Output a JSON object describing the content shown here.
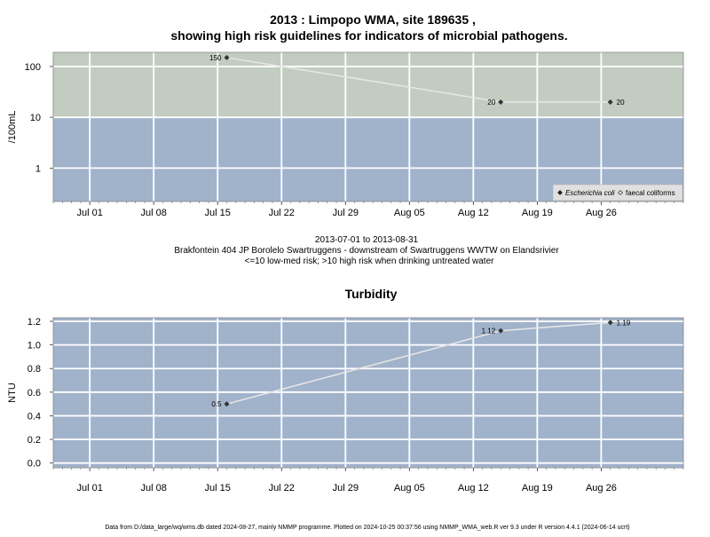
{
  "header": {
    "title_line1": "2013 : Limpopo WMA, site 189635 ,",
    "title_line2": "showing high risk guidelines for indicators of microbial pathogens."
  },
  "caption": {
    "date_range": "2013-07-01 to 2013-08-31",
    "site_description": "Brakfontein 404 JP Borolelo Swartruggens - downstream of Swartruggens WWTW on Elandsrivier",
    "risk_note": "<=10 low-med risk; >10 high risk when drinking untreated water"
  },
  "footer": {
    "text": "Data from D:/data_large/wq/wms.db dated 2024-08-27, mainly NMMP programme. Plotted on 2024-10-25 00:37:56 using NMMP_WMA_web.R ver 9.3 under R version 4.4.1 (2024-06-14 ucrt)"
  },
  "colors": {
    "high_risk_band": "#c2ccc0",
    "low_risk_band": "#a1b2cb",
    "line": "#e6e6e6",
    "grid": "#ffffff",
    "point": "#333333"
  },
  "chart_data": [
    {
      "type": "line",
      "title": "",
      "ylabel": "/100mL",
      "xlabel": "",
      "y_scale": "log",
      "xlim": [
        "2013-06-27",
        "2013-09-04"
      ],
      "ylim": [
        0.22,
        190
      ],
      "y_ticks": [
        1,
        10,
        100
      ],
      "y_tick_labels": [
        "1",
        "10",
        "100"
      ],
      "x_ticks": [
        "2013-07-01",
        "2013-07-08",
        "2013-07-15",
        "2013-07-22",
        "2013-07-29",
        "2013-08-05",
        "2013-08-12",
        "2013-08-19",
        "2013-08-26"
      ],
      "x_tick_labels": [
        "Jul 01",
        "Jul 08",
        "Jul 15",
        "Jul 22",
        "Jul 29",
        "Aug 05",
        "Aug 12",
        "Aug 19",
        "Aug 26"
      ],
      "guideline": 10,
      "grid": true,
      "legend": {
        "placement": "bottom-right",
        "entries": [
          {
            "label": "Escherichia coli",
            "marker": "filled-diamond"
          },
          {
            "label": "faecal coliforms",
            "marker": "open-diamond"
          }
        ]
      },
      "series": [
        {
          "name": "Escherichia coli",
          "x": [
            "2013-07-16",
            "2013-08-15",
            "2013-08-27"
          ],
          "y": [
            150,
            20,
            20
          ],
          "labels": [
            "150",
            "20",
            "20"
          ]
        }
      ]
    },
    {
      "type": "line",
      "title": "Turbidity",
      "ylabel": "NTU",
      "xlabel": "",
      "y_scale": "linear",
      "xlim": [
        "2013-06-27",
        "2013-09-04"
      ],
      "ylim": [
        -0.04,
        1.23
      ],
      "y_ticks": [
        0.0,
        0.2,
        0.4,
        0.6,
        0.8,
        1.0,
        1.2
      ],
      "y_tick_labels": [
        "0.0",
        "0.2",
        "0.4",
        "0.6",
        "0.8",
        "1.0",
        "1.2"
      ],
      "x_ticks": [
        "2013-07-01",
        "2013-07-08",
        "2013-07-15",
        "2013-07-22",
        "2013-07-29",
        "2013-08-05",
        "2013-08-12",
        "2013-08-19",
        "2013-08-26"
      ],
      "x_tick_labels": [
        "Jul 01",
        "Jul 08",
        "Jul 15",
        "Jul 22",
        "Jul 29",
        "Aug 05",
        "Aug 12",
        "Aug 19",
        "Aug 26"
      ],
      "grid": true,
      "series": [
        {
          "x": [
            "2013-07-16",
            "2013-08-15",
            "2013-08-27"
          ],
          "y": [
            0.5,
            1.12,
            1.19
          ],
          "labels": [
            "0.5",
            "1.12",
            "1.19"
          ]
        }
      ]
    }
  ]
}
